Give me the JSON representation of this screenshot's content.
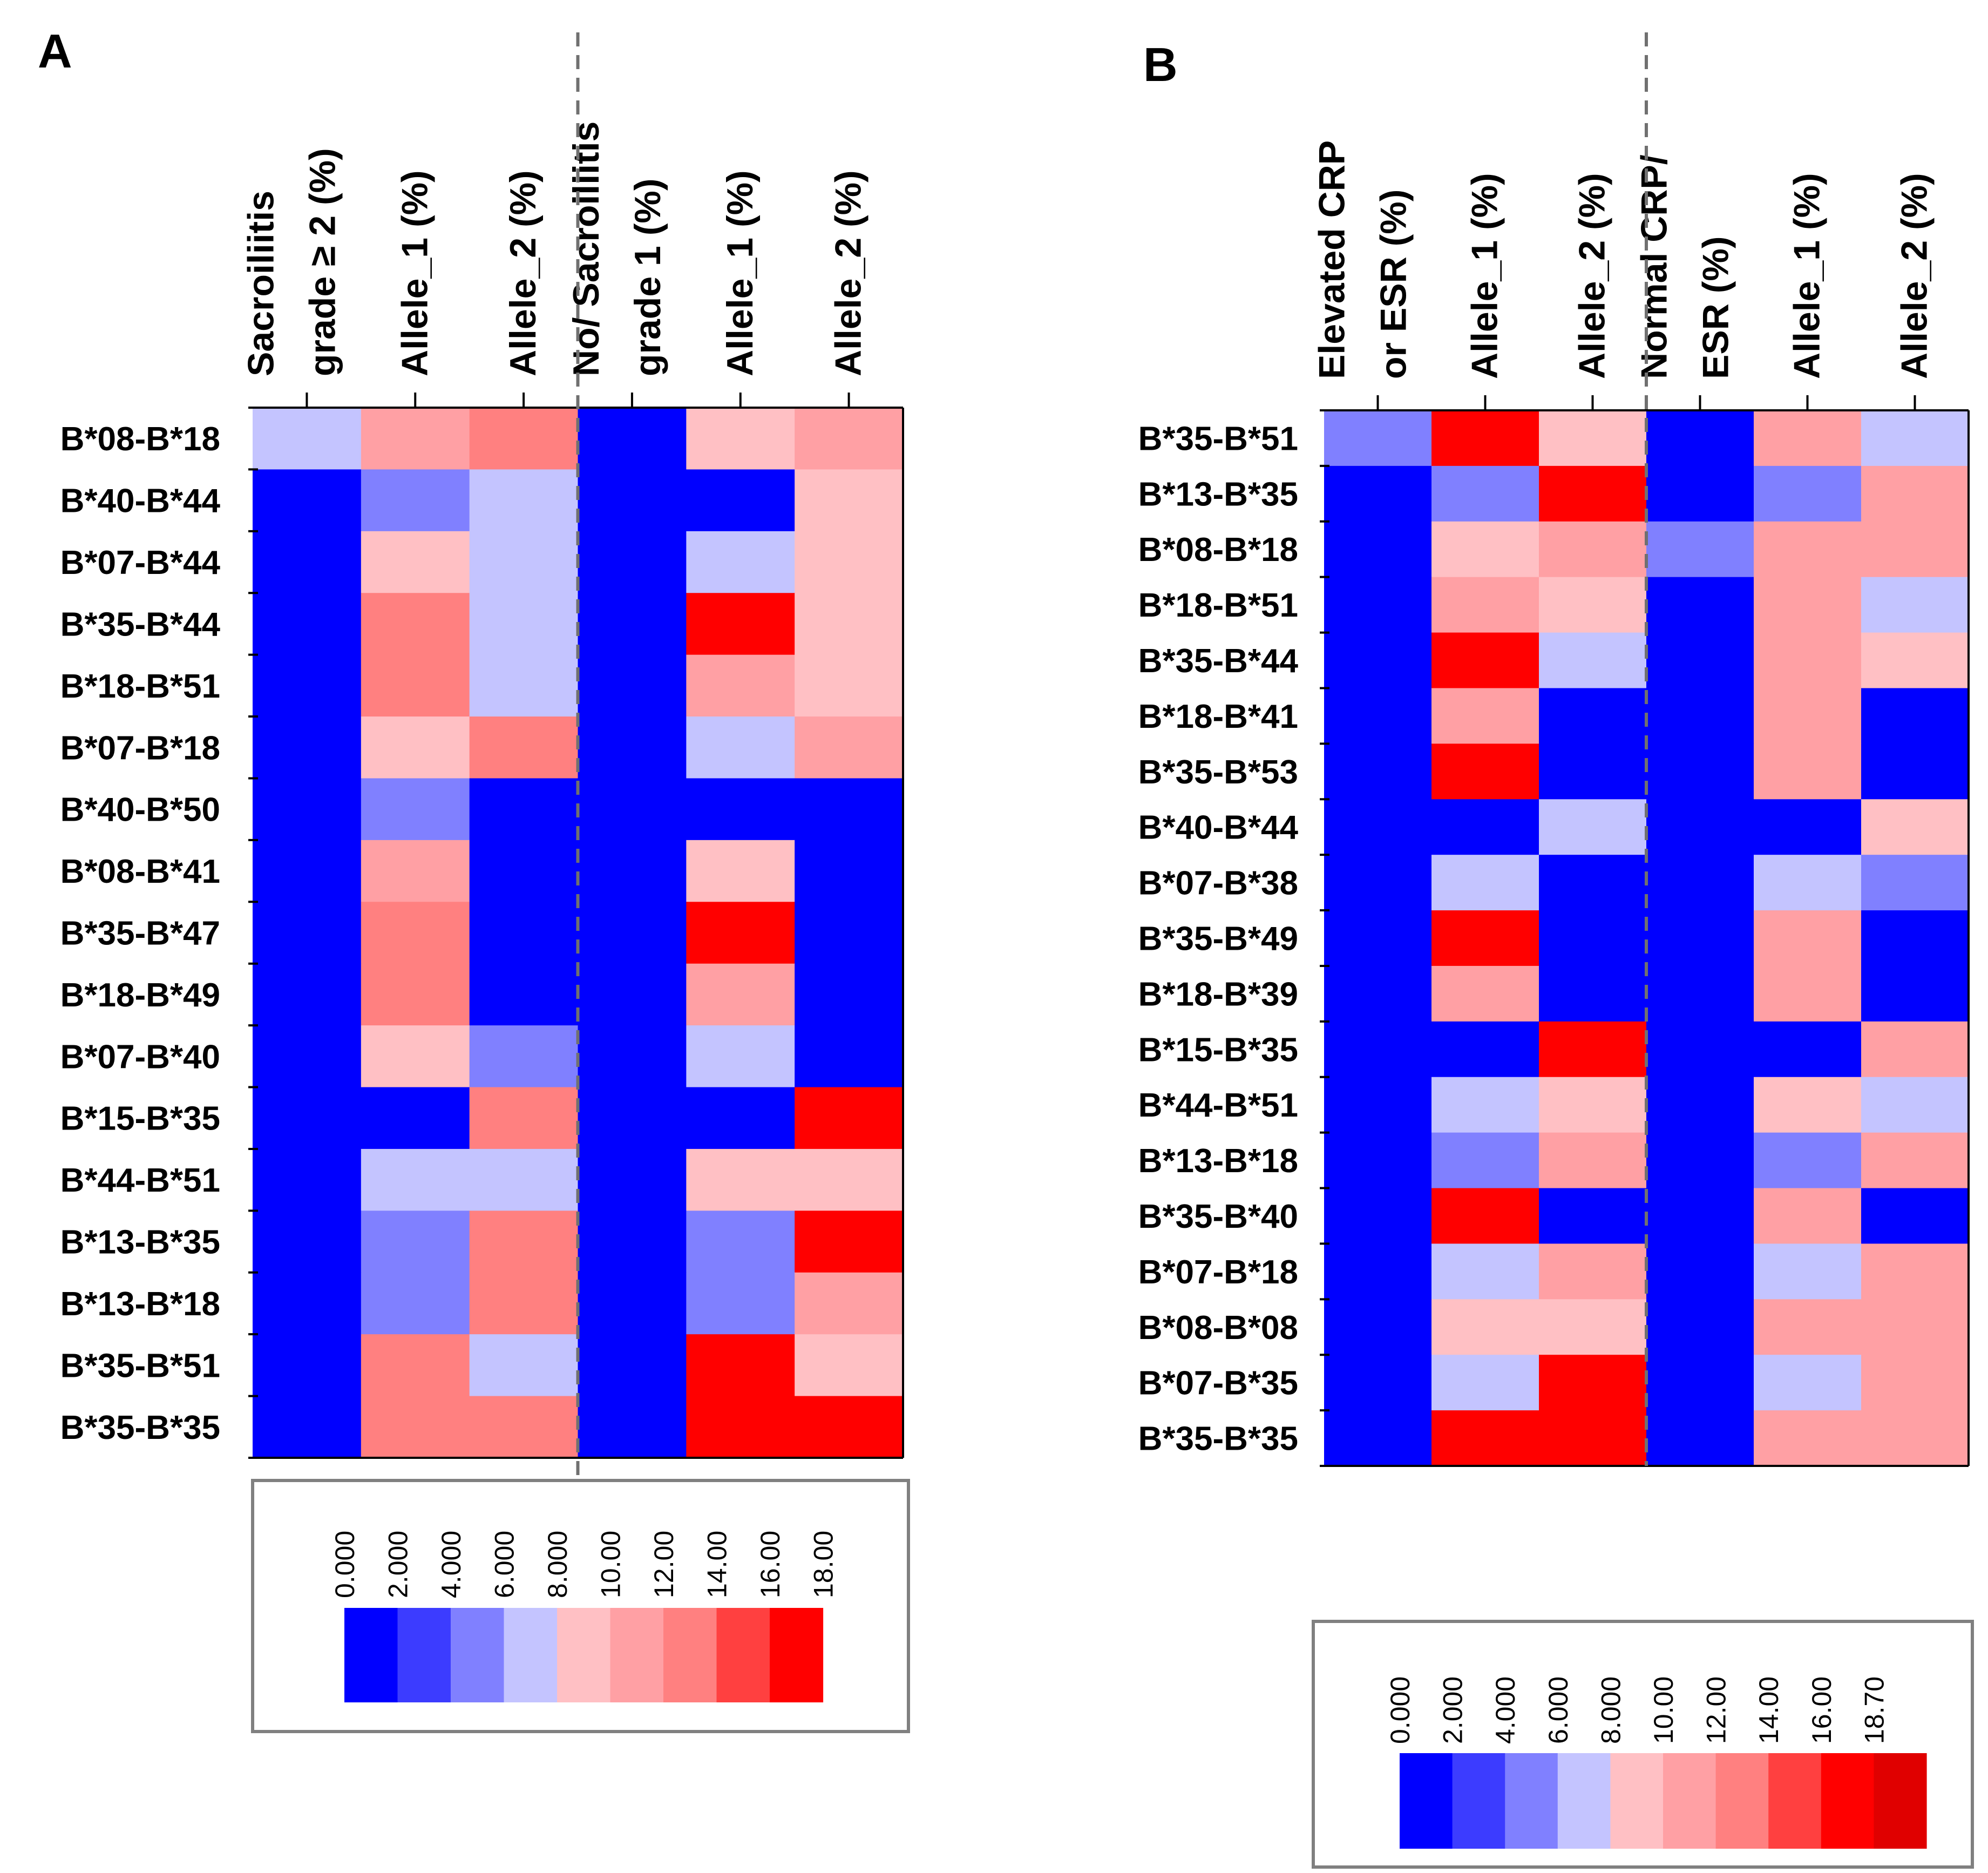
{
  "colors": {
    "scale": [
      "#0000ff",
      "#3c3cff",
      "#8080ff",
      "#c4c4ff",
      "#ffc0c4",
      "#ffa0a4",
      "#ff8080",
      "#ff4040",
      "#ff0000",
      "#e00000"
    ],
    "divider": "#707070",
    "frame": "#808080"
  },
  "chart_data": [
    {
      "type": "heatmap",
      "panel": "A",
      "columns": [
        {
          "line1": "Sacroiliitis",
          "line2": "grade ≥ 2 (%)"
        },
        {
          "line1": "",
          "line2": "Allele_1 (%)"
        },
        {
          "line1": "",
          "line2": "Allele_2 (%)"
        },
        {
          "line1": "No/ Sacroiliitis",
          "line2": "grade  1 (%)"
        },
        {
          "line1": "",
          "line2": "Allele_1 (%)"
        },
        {
          "line1": "",
          "line2": "Allele_2 (%)"
        }
      ],
      "rows": [
        "B*08-B*18",
        "B*40-B*44",
        "B*07-B*44",
        "B*35-B*44",
        "B*18-B*51",
        "B*07-B*18",
        "B*40-B*50",
        "B*08-B*41",
        "B*35-B*47",
        "B*18-B*49",
        "B*07-B*40",
        "B*15-B*35",
        "B*44-B*51",
        "B*13-B*35",
        "B*13-B*18",
        "B*35-B*51",
        "B*35-B*35"
      ],
      "values": [
        [
          7,
          11,
          12,
          1,
          9,
          11
        ],
        [
          1,
          5,
          7,
          0,
          1,
          9
        ],
        [
          1,
          9,
          7,
          0,
          7,
          9
        ],
        [
          1,
          12,
          7,
          1,
          17,
          9
        ],
        [
          1,
          12,
          7,
          1,
          11,
          9
        ],
        [
          1,
          9,
          12,
          0,
          7,
          11
        ],
        [
          1,
          5,
          1,
          0,
          1,
          0
        ],
        [
          1,
          11,
          1,
          0,
          9,
          1
        ],
        [
          1,
          12,
          1,
          0,
          17,
          1
        ],
        [
          1,
          12,
          1,
          0,
          11,
          1
        ],
        [
          1,
          9,
          5,
          0,
          7,
          1
        ],
        [
          1,
          1,
          12,
          1,
          1,
          17
        ],
        [
          1,
          7,
          7,
          0,
          9,
          9
        ],
        [
          1,
          5,
          12,
          1,
          5,
          17
        ],
        [
          1,
          5,
          12,
          0,
          5,
          11
        ],
        [
          1,
          12,
          7,
          1,
          17,
          9
        ],
        [
          1,
          12,
          12,
          0,
          17,
          17
        ]
      ],
      "legend_ticks": [
        "0.000",
        "2.000",
        "4.000",
        "6.000",
        "8.000",
        "10.00",
        "12.00",
        "14.00",
        "16.00",
        "18.00"
      ],
      "legend_range": [
        0,
        18
      ],
      "group_divider_after_column": 3
    },
    {
      "type": "heatmap",
      "panel": "B",
      "columns": [
        {
          "line1": "Elevated CRP",
          "line2": "or ESR (%)"
        },
        {
          "line1": "",
          "line2": "Allele_1 (%)"
        },
        {
          "line1": "",
          "line2": "Allele_2 (%)"
        },
        {
          "line1": "Normal CRP/",
          "line2": "ESR (%)"
        },
        {
          "line1": "",
          "line2": "Allele_1 (%)"
        },
        {
          "line1": "",
          "line2": "Allele_2 (%)"
        }
      ],
      "rows": [
        "B*35-B*51",
        "B*13-B*35",
        "B*08-B*18",
        "B*18-B*51",
        "B*35-B*44",
        "B*18-B*41",
        "B*35-B*53",
        "B*40-B*44",
        "B*07-B*38",
        "B*35-B*49",
        "B*18-B*39",
        "B*15-B*35",
        "B*44-B*51",
        "B*13-B*18",
        "B*35-B*40",
        "B*07-B*18",
        "B*08-B*08",
        "B*07-B*35",
        "B*35-B*35"
      ],
      "values": [
        [
          5,
          17,
          9,
          0,
          12,
          7
        ],
        [
          1,
          5,
          17,
          1,
          5,
          12
        ],
        [
          1,
          9,
          12,
          5,
          11,
          11
        ],
        [
          1,
          12,
          9,
          1,
          11,
          7
        ],
        [
          1,
          17,
          7,
          1,
          12,
          9
        ],
        [
          1,
          12,
          0,
          0,
          11,
          1
        ],
        [
          1,
          17,
          0,
          0,
          12,
          0
        ],
        [
          1,
          1,
          7,
          0,
          1,
          9
        ],
        [
          1,
          7,
          1,
          0,
          7,
          5
        ],
        [
          1,
          17,
          0,
          0,
          12,
          1
        ],
        [
          1,
          12,
          1,
          0,
          11,
          0
        ],
        [
          1,
          1,
          17,
          1,
          1,
          12
        ],
        [
          1,
          7,
          9,
          0,
          9,
          7
        ],
        [
          1,
          5,
          12,
          0,
          5,
          11
        ],
        [
          1,
          17,
          1,
          0,
          12,
          1
        ],
        [
          1,
          7,
          12,
          0,
          7,
          11
        ],
        [
          1,
          9,
          9,
          0,
          11,
          11
        ],
        [
          1,
          7,
          17,
          1,
          7,
          12
        ],
        [
          1,
          17,
          17,
          0,
          12,
          12
        ]
      ],
      "legend_ticks": [
        "0.000",
        "2.000",
        "4.000",
        "6.000",
        "8.000",
        "10.00",
        "12.00",
        "14.00",
        "16.00",
        "18.70"
      ],
      "legend_range": [
        0,
        18.7
      ],
      "group_divider_after_column": 3
    }
  ]
}
